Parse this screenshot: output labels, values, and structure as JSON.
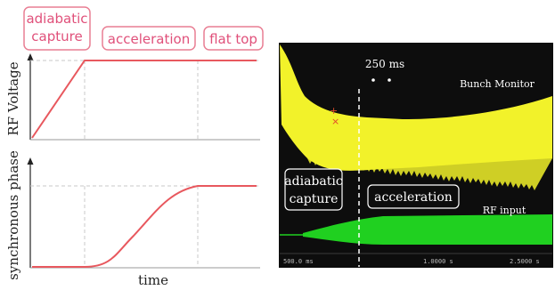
{
  "colors": {
    "curve": "#e8585e",
    "box_border": "#e97f94",
    "box_text": "#e0507a",
    "scope_bg": "#0d0d0d",
    "bunch_signal": "#f2f22a",
    "rf_signal": "#20d020",
    "scope_text": "#ffffff"
  },
  "schematic": {
    "phases": [
      {
        "id": "adiabatic",
        "label_lines": [
          "adiabatic",
          "capture"
        ]
      },
      {
        "id": "acceleration",
        "label_lines": [
          "acceleration"
        ]
      },
      {
        "id": "flattop",
        "label_lines": [
          "flat top"
        ]
      }
    ],
    "top_plot": {
      "ylabel": "RF Voltage"
    },
    "bottom_plot": {
      "ylabel": "synchronous phase",
      "xlabel": "time"
    }
  },
  "scope": {
    "time_marker": "250 ms",
    "bunch_label": "Bunch Monitor",
    "rf_label": "RF input",
    "phase_labels": {
      "adiabatic": [
        "adiabatic",
        "capture"
      ],
      "acceleration": "acceleration"
    },
    "footer": {
      "left": "500.0 ms",
      "center": "1.0000 s",
      "right": "2.5000 s"
    }
  }
}
